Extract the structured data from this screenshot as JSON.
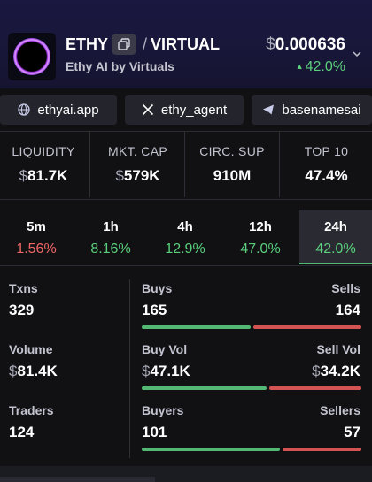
{
  "header": {
    "symbol": "ETHY",
    "quote_symbol": "VIRTUAL",
    "slash": "/",
    "name": "Ethy AI by Virtuals",
    "price_currency": "$",
    "price": "0.000636",
    "price_change": "42.0%",
    "price_change_dir": "up"
  },
  "links": [
    {
      "icon": "globe-icon",
      "label": "ethyai.app"
    },
    {
      "icon": "x-logo-icon",
      "label": "ethy_agent"
    },
    {
      "icon": "telegram-icon",
      "label": "basenamesai"
    }
  ],
  "stats": [
    {
      "label": "LIQUIDITY",
      "currency": "$",
      "value": "81.7K"
    },
    {
      "label": "MKT. CAP",
      "currency": "$",
      "value": "579K"
    },
    {
      "label": "CIRC. SUP",
      "currency": "",
      "value": "910M"
    },
    {
      "label": "TOP 10",
      "currency": "",
      "value": "47.4%"
    }
  ],
  "timeframes": [
    {
      "period": "5m",
      "change": "1.56%",
      "dir": "down"
    },
    {
      "period": "1h",
      "change": "8.16%",
      "dir": "up"
    },
    {
      "period": "4h",
      "change": "12.9%",
      "dir": "up"
    },
    {
      "period": "12h",
      "change": "47.0%",
      "dir": "up"
    },
    {
      "period": "24h",
      "change": "42.0%",
      "dir": "up",
      "selected": true
    }
  ],
  "metrics": {
    "txns": {
      "label": "Txns",
      "value": "329"
    },
    "volume": {
      "label": "Volume",
      "currency": "$",
      "value": "81.4K"
    },
    "traders": {
      "label": "Traders",
      "value": "124"
    },
    "buys": {
      "label": "Buys",
      "value": "165"
    },
    "sells": {
      "label": "Sells",
      "value": "164"
    },
    "buy_vol": {
      "label": "Buy Vol",
      "currency": "$",
      "value": "47.1K"
    },
    "sell_vol": {
      "label": "Sell Vol",
      "currency": "$",
      "value": "34.2K"
    },
    "buyers": {
      "label": "Buyers",
      "value": "101"
    },
    "sellers": {
      "label": "Sellers",
      "value": "57"
    }
  },
  "colors": {
    "up": "#5bcf7c",
    "down": "#f06767",
    "accent_bg": "#1a1740"
  }
}
